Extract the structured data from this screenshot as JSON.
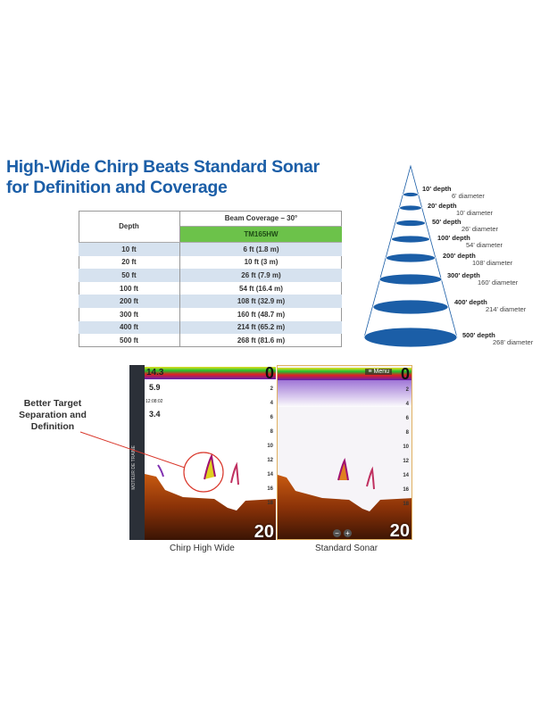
{
  "title": {
    "line1": "High-Wide Chirp Beats Standard Sonar",
    "line2": "for Definition and Coverage"
  },
  "colors": {
    "title": "#1b5ea7",
    "model_header": "#6cc24a",
    "row_alt": "#d6e2ef",
    "cone": "#1b5ea7",
    "callout": "#d9372b"
  },
  "table": {
    "depth_header": "Depth",
    "coverage_header": "Beam Coverage – 30°",
    "model": "TM165HW",
    "rows": [
      {
        "depth": "10 ft",
        "coverage": "6 ft (1.8 m)"
      },
      {
        "depth": "20 ft",
        "coverage": "10 ft (3 m)"
      },
      {
        "depth": "50 ft",
        "coverage": "26 ft (7.9 m)"
      },
      {
        "depth": "100 ft",
        "coverage": "54 ft (16.4 m)"
      },
      {
        "depth": "200 ft",
        "coverage": "108 ft (32.9 m)"
      },
      {
        "depth": "300 ft",
        "coverage": "160 ft (48.7 m)"
      },
      {
        "depth": "400 ft",
        "coverage": "214 ft (65.2 m)"
      },
      {
        "depth": "500 ft",
        "coverage": "268 ft (81.6 m)"
      }
    ]
  },
  "cone": [
    {
      "depth": "10' depth",
      "diameter": "6' diameter"
    },
    {
      "depth": "20' depth",
      "diameter": "10' diameter"
    },
    {
      "depth": "50' depth",
      "diameter": "26' diameter"
    },
    {
      "depth": "100' depth",
      "diameter": "54' diameter"
    },
    {
      "depth": "200' depth",
      "diameter": "108' diameter"
    },
    {
      "depth": "300' depth",
      "diameter": "160' diameter"
    },
    {
      "depth": "400' depth",
      "diameter": "214' diameter"
    },
    {
      "depth": "500' depth",
      "diameter": "268' diameter"
    }
  ],
  "callout": "Better Target Separation and Definition",
  "sonar": {
    "left": {
      "caption": "Chirp High Wide",
      "range_top": "0",
      "range_bottom": "20",
      "readouts": [
        "14.3",
        "5.9",
        "12:08:02",
        "3.4"
      ],
      "side_label": "MOTEUR DE TRAINE",
      "scale": [
        "2",
        "4",
        "6",
        "8",
        "10",
        "12",
        "14",
        "16",
        "18"
      ]
    },
    "right": {
      "caption": "Standard Sonar",
      "range_top": "0",
      "range_bottom": "20",
      "menu": "≡ Menu",
      "scale": [
        "2",
        "4",
        "6",
        "8",
        "10",
        "12",
        "14",
        "16",
        "18"
      ],
      "zoom_out": "−",
      "zoom_in": "+"
    }
  }
}
